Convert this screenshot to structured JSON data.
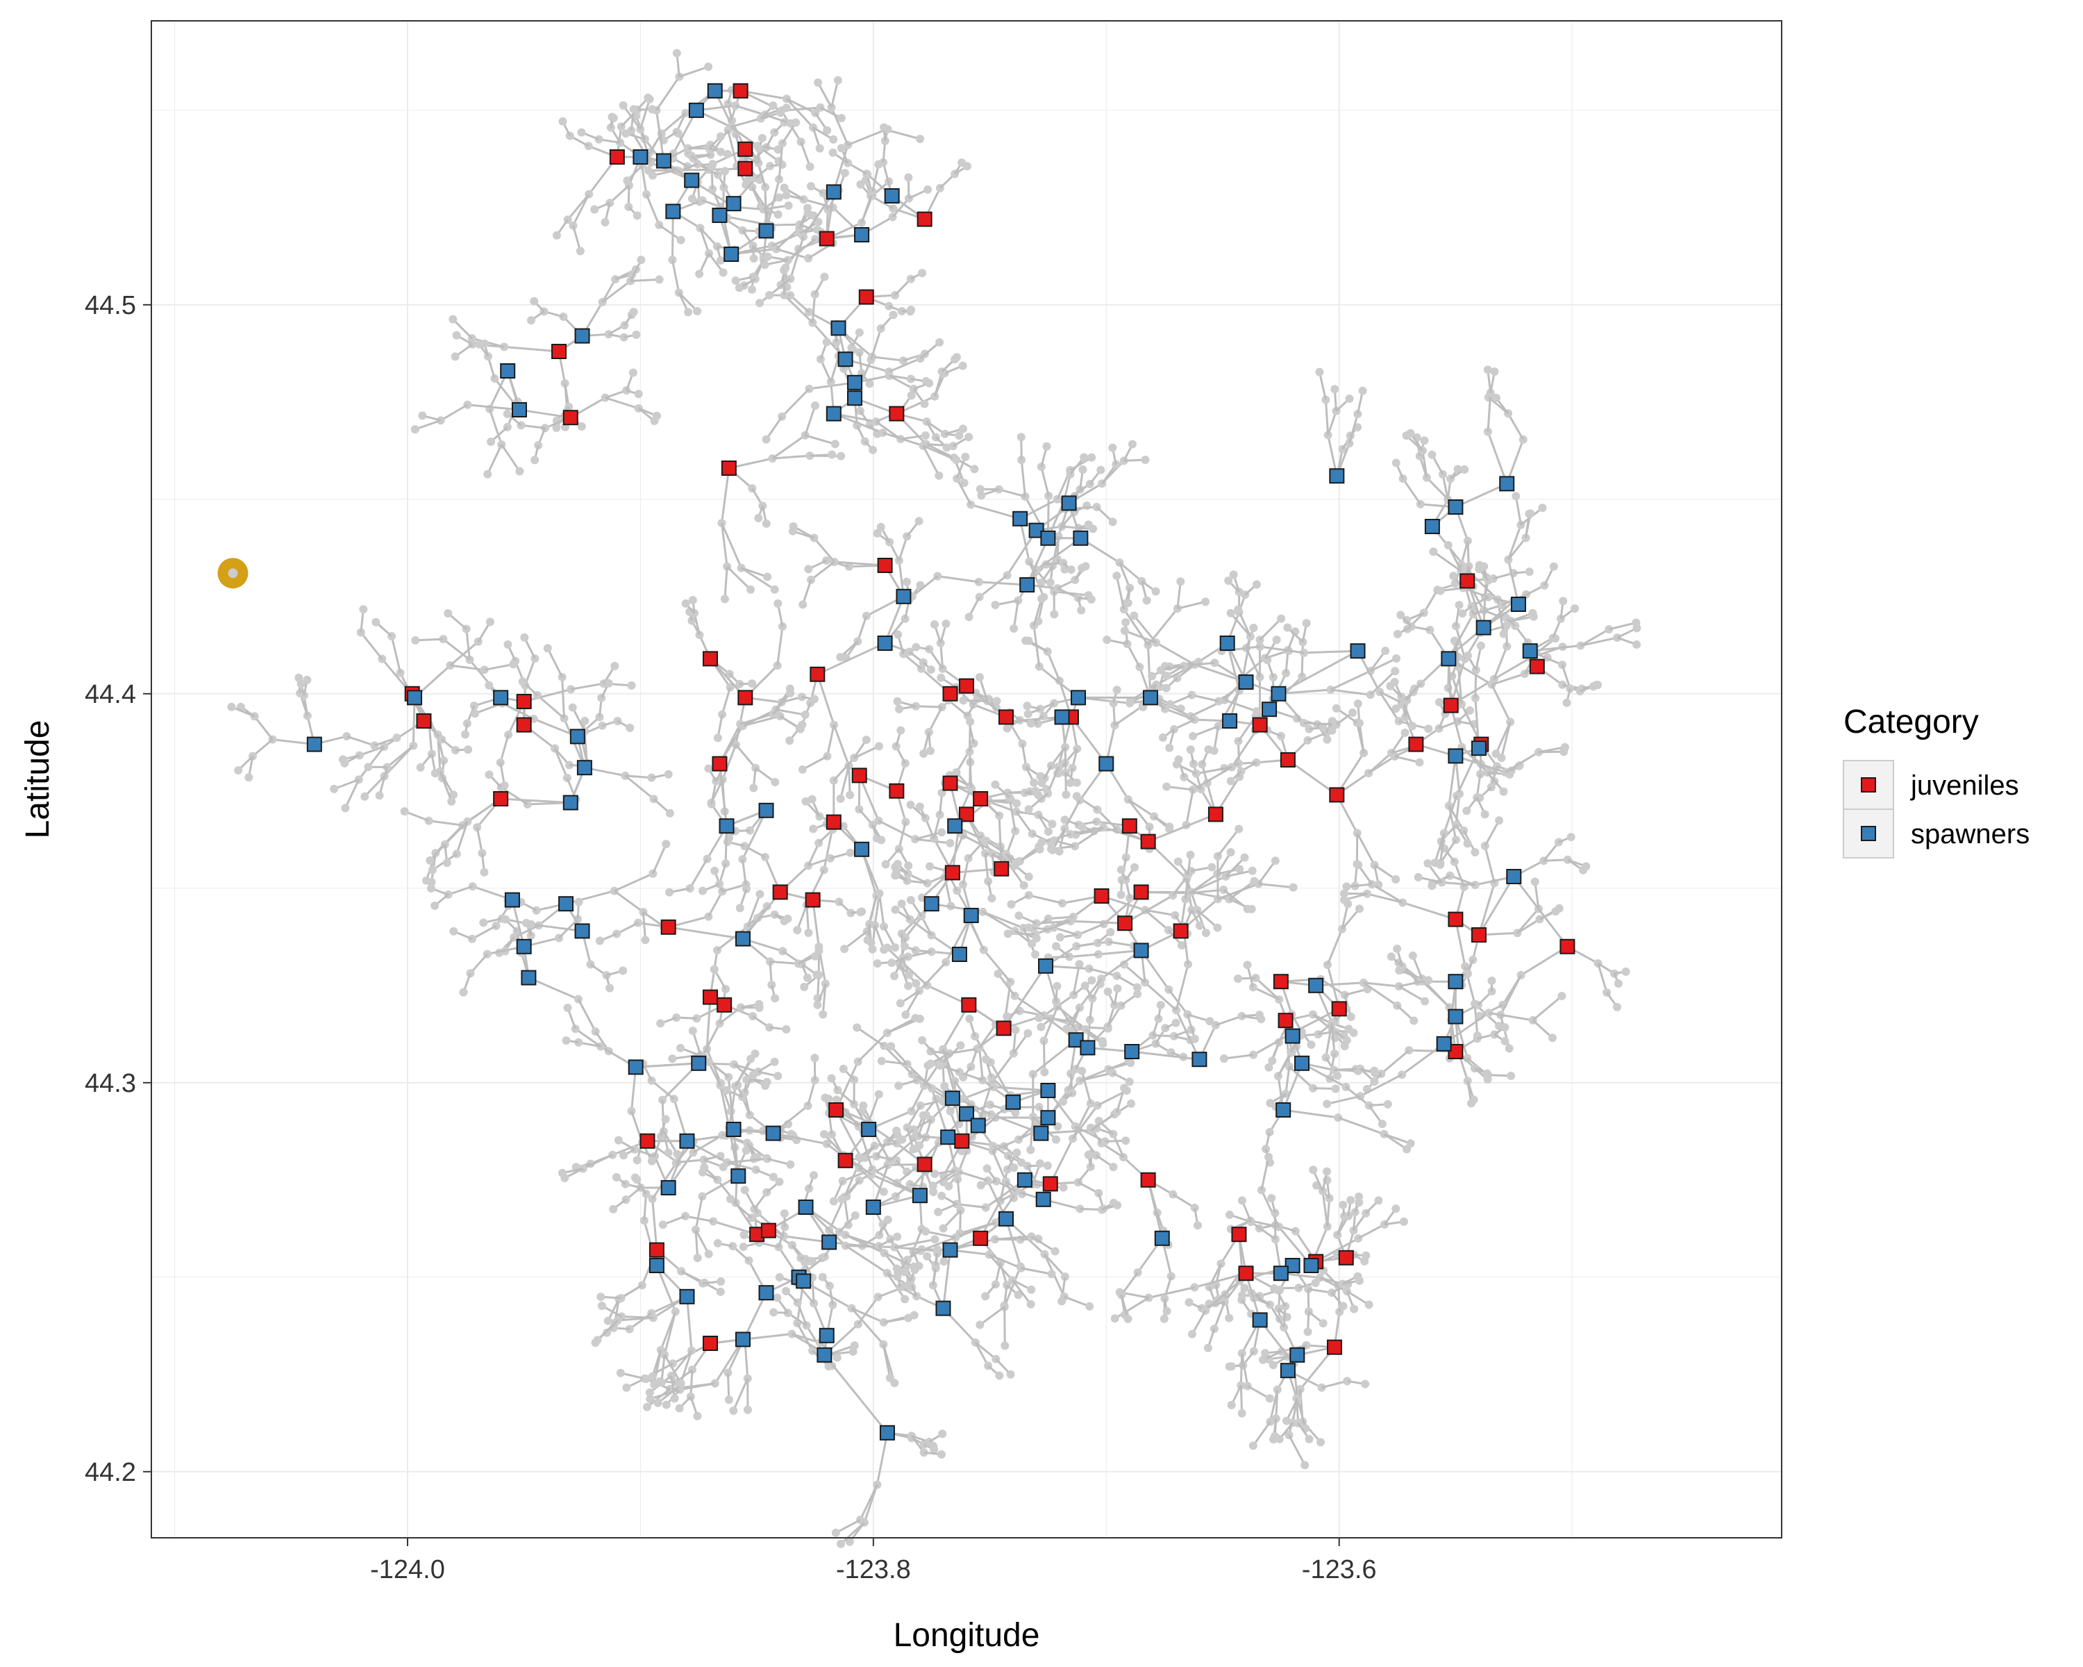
{
  "chart_data": {
    "type": "scatter",
    "title": "",
    "xlabel": "Longitude",
    "ylabel": "Latitude",
    "xlim": [
      -124.11,
      -123.41
    ],
    "ylim": [
      44.183,
      44.573
    ],
    "x_ticks": [
      -124.0,
      -123.8,
      -123.6
    ],
    "x_tick_labels": [
      "-124.0",
      "-123.8",
      "-123.6"
    ],
    "y_ticks": [
      44.2,
      44.3,
      44.4,
      44.5
    ],
    "y_tick_labels": [
      "44.2",
      "44.3",
      "44.4",
      "44.5"
    ],
    "grid": true,
    "legend": {
      "title": "Category",
      "position": "right",
      "entries": [
        {
          "label": "juveniles",
          "color": "#e31a1c"
        },
        {
          "label": "spawners",
          "color": "#377eb8"
        }
      ]
    },
    "network_color": "#bdbdbd",
    "outlet": {
      "x": -124.075,
      "y": 44.431,
      "color": "#d4a017"
    },
    "series": [
      {
        "name": "juveniles",
        "color": "#e31a1c",
        "marker": "square",
        "points": [
          [
            -123.857,
            44.555
          ],
          [
            -123.91,
            44.538
          ],
          [
            -123.855,
            44.54
          ],
          [
            -123.855,
            44.535
          ],
          [
            -123.778,
            44.522
          ],
          [
            -123.82,
            44.517
          ],
          [
            -123.803,
            44.502
          ],
          [
            -123.935,
            44.488
          ],
          [
            -123.93,
            44.471
          ],
          [
            -123.79,
            44.472
          ],
          [
            -123.862,
            44.458
          ],
          [
            -123.795,
            44.433
          ],
          [
            -123.87,
            44.409
          ],
          [
            -123.824,
            44.405
          ],
          [
            -123.855,
            44.399
          ],
          [
            -123.76,
            44.402
          ],
          [
            -123.767,
            44.4
          ],
          [
            -123.743,
            44.394
          ],
          [
            -123.998,
            44.4
          ],
          [
            -123.993,
            44.393
          ],
          [
            -123.95,
            44.398
          ],
          [
            -123.95,
            44.392
          ],
          [
            -123.96,
            44.373
          ],
          [
            -123.866,
            44.382
          ],
          [
            -123.806,
            44.379
          ],
          [
            -123.79,
            44.375
          ],
          [
            -123.767,
            44.377
          ],
          [
            -123.76,
            44.369
          ],
          [
            -123.754,
            44.373
          ],
          [
            -123.817,
            44.367
          ],
          [
            -123.715,
            44.394
          ],
          [
            -123.84,
            44.349
          ],
          [
            -123.826,
            44.347
          ],
          [
            -123.766,
            44.354
          ],
          [
            -123.745,
            44.355
          ],
          [
            -123.888,
            44.34
          ],
          [
            -123.87,
            44.322
          ],
          [
            -123.864,
            44.32
          ],
          [
            -123.702,
            44.348
          ],
          [
            -123.69,
            44.366
          ],
          [
            -123.682,
            44.362
          ],
          [
            -123.685,
            44.349
          ],
          [
            -123.692,
            44.341
          ],
          [
            -123.668,
            44.339
          ],
          [
            -123.759,
            44.32
          ],
          [
            -123.744,
            44.314
          ],
          [
            -123.724,
            44.274
          ],
          [
            -123.682,
            44.275
          ],
          [
            -123.812,
            44.28
          ],
          [
            -123.816,
            44.293
          ],
          [
            -123.778,
            44.279
          ],
          [
            -123.762,
            44.285
          ],
          [
            -123.754,
            44.26
          ],
          [
            -123.85,
            44.261
          ],
          [
            -123.845,
            44.262
          ],
          [
            -123.897,
            44.285
          ],
          [
            -123.893,
            44.257
          ],
          [
            -123.87,
            44.233
          ],
          [
            -123.653,
            44.369
          ],
          [
            -123.622,
            44.383
          ],
          [
            -123.634,
            44.392
          ],
          [
            -123.601,
            44.374
          ],
          [
            -123.567,
            44.387
          ],
          [
            -123.552,
            44.397
          ],
          [
            -123.539,
            44.387
          ],
          [
            -123.545,
            44.429
          ],
          [
            -123.515,
            44.407
          ],
          [
            -123.55,
            44.342
          ],
          [
            -123.54,
            44.338
          ],
          [
            -123.502,
            44.335
          ],
          [
            -123.625,
            44.326
          ],
          [
            -123.6,
            44.319
          ],
          [
            -123.623,
            44.316
          ],
          [
            -123.55,
            44.308
          ],
          [
            -123.643,
            44.261
          ],
          [
            -123.64,
            44.251
          ],
          [
            -123.61,
            44.254
          ],
          [
            -123.597,
            44.255
          ],
          [
            -123.602,
            44.232
          ]
        ]
      },
      {
        "name": "spawners",
        "color": "#377eb8",
        "marker": "square",
        "points": [
          [
            -123.868,
            44.555
          ],
          [
            -123.876,
            44.55
          ],
          [
            -123.9,
            44.538
          ],
          [
            -123.89,
            44.537
          ],
          [
            -123.878,
            44.532
          ],
          [
            -123.866,
            44.523
          ],
          [
            -123.86,
            44.526
          ],
          [
            -123.886,
            44.524
          ],
          [
            -123.861,
            44.513
          ],
          [
            -123.846,
            44.519
          ],
          [
            -123.817,
            44.529
          ],
          [
            -123.792,
            44.528
          ],
          [
            -123.805,
            44.518
          ],
          [
            -123.815,
            44.494
          ],
          [
            -123.812,
            44.486
          ],
          [
            -123.808,
            44.48
          ],
          [
            -123.808,
            44.476
          ],
          [
            -123.817,
            44.472
          ],
          [
            -123.925,
            44.492
          ],
          [
            -123.957,
            44.483
          ],
          [
            -123.952,
            44.473
          ],
          [
            -123.787,
            44.425
          ],
          [
            -123.795,
            44.413
          ],
          [
            -123.737,
            44.445
          ],
          [
            -123.73,
            44.442
          ],
          [
            -123.716,
            44.449
          ],
          [
            -123.734,
            44.428
          ],
          [
            -123.725,
            44.44
          ],
          [
            -123.711,
            44.44
          ],
          [
            -123.96,
            44.399
          ],
          [
            -123.997,
            44.399
          ],
          [
            -124.04,
            44.387
          ],
          [
            -123.927,
            44.389
          ],
          [
            -123.924,
            44.381
          ],
          [
            -123.93,
            44.372
          ],
          [
            -123.955,
            44.347
          ],
          [
            -123.932,
            44.346
          ],
          [
            -123.925,
            44.339
          ],
          [
            -123.95,
            44.335
          ],
          [
            -123.948,
            44.327
          ],
          [
            -123.846,
            44.37
          ],
          [
            -123.863,
            44.366
          ],
          [
            -123.805,
            44.36
          ],
          [
            -123.765,
            44.366
          ],
          [
            -123.775,
            44.346
          ],
          [
            -123.758,
            44.343
          ],
          [
            -123.763,
            44.333
          ],
          [
            -123.719,
            44.394
          ],
          [
            -123.712,
            44.399
          ],
          [
            -123.7,
            44.382
          ],
          [
            -123.681,
            44.399
          ],
          [
            -123.856,
            44.337
          ],
          [
            -123.875,
            44.305
          ],
          [
            -123.902,
            44.304
          ],
          [
            -123.88,
            44.285
          ],
          [
            -123.86,
            44.288
          ],
          [
            -123.843,
            44.287
          ],
          [
            -123.858,
            44.276
          ],
          [
            -123.888,
            44.273
          ],
          [
            -123.802,
            44.288
          ],
          [
            -123.766,
            44.296
          ],
          [
            -123.76,
            44.292
          ],
          [
            -123.755,
            44.289
          ],
          [
            -123.768,
            44.286
          ],
          [
            -123.74,
            44.295
          ],
          [
            -123.725,
            44.291
          ],
          [
            -123.725,
            44.298
          ],
          [
            -123.713,
            44.311
          ],
          [
            -123.708,
            44.309
          ],
          [
            -123.689,
            44.308
          ],
          [
            -123.66,
            44.306
          ],
          [
            -123.685,
            44.334
          ],
          [
            -123.726,
            44.33
          ],
          [
            -123.728,
            44.287
          ],
          [
            -123.735,
            44.275
          ],
          [
            -123.727,
            44.27
          ],
          [
            -123.743,
            44.265
          ],
          [
            -123.676,
            44.26
          ],
          [
            -123.8,
            44.268
          ],
          [
            -123.78,
            44.271
          ],
          [
            -123.767,
            44.257
          ],
          [
            -123.819,
            44.259
          ],
          [
            -123.829,
            44.268
          ],
          [
            -123.846,
            44.246
          ],
          [
            -123.832,
            44.25
          ],
          [
            -123.83,
            44.249
          ],
          [
            -123.82,
            44.235
          ],
          [
            -123.821,
            44.23
          ],
          [
            -123.856,
            44.234
          ],
          [
            -123.88,
            44.245
          ],
          [
            -123.893,
            44.253
          ],
          [
            -123.77,
            44.242
          ],
          [
            -123.794,
            44.21
          ],
          [
            -123.648,
            44.413
          ],
          [
            -123.64,
            44.403
          ],
          [
            -123.647,
            44.393
          ],
          [
            -123.63,
            44.396
          ],
          [
            -123.626,
            44.4
          ],
          [
            -123.601,
            44.456
          ],
          [
            -123.56,
            44.443
          ],
          [
            -123.55,
            44.448
          ],
          [
            -123.528,
            44.454
          ],
          [
            -123.553,
            44.409
          ],
          [
            -123.538,
            44.417
          ],
          [
            -123.523,
            44.423
          ],
          [
            -123.518,
            44.411
          ],
          [
            -123.592,
            44.411
          ],
          [
            -123.55,
            44.384
          ],
          [
            -123.54,
            44.386
          ],
          [
            -123.525,
            44.353
          ],
          [
            -123.55,
            44.326
          ],
          [
            -123.55,
            44.317
          ],
          [
            -123.555,
            44.31
          ],
          [
            -123.62,
            44.312
          ],
          [
            -123.61,
            44.325
          ],
          [
            -123.616,
            44.305
          ],
          [
            -123.624,
            44.293
          ],
          [
            -123.612,
            44.253
          ],
          [
            -123.62,
            44.253
          ],
          [
            -123.625,
            44.251
          ],
          [
            -123.634,
            44.239
          ],
          [
            -123.618,
            44.23
          ],
          [
            -123.622,
            44.226
          ]
        ]
      }
    ]
  }
}
